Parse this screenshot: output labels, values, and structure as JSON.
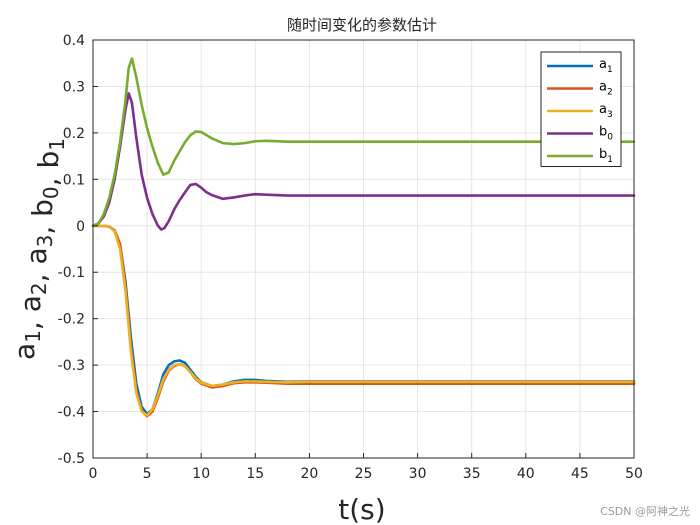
{
  "chart_data": {
    "type": "line",
    "title": "随时间变化的参数估计",
    "xlabel": "t(s)",
    "ylabel": {
      "parts": [
        {
          "base": "a",
          "sub": "1"
        },
        {
          "base": ", a",
          "sub": "2"
        },
        {
          "base": ", a",
          "sub": "3"
        },
        {
          "base": ", b",
          "sub": "0"
        },
        {
          "base": ", b",
          "sub": "1"
        }
      ]
    },
    "xlim": [
      0,
      50
    ],
    "ylim": [
      -0.5,
      0.4
    ],
    "xticks": [
      0,
      5,
      10,
      15,
      20,
      25,
      30,
      35,
      40,
      45,
      50
    ],
    "yticks": [
      0.4,
      0.3,
      0.2,
      0.1,
      0,
      -0.1,
      -0.2,
      -0.3,
      -0.4,
      -0.5
    ],
    "xtick_labels": [
      "0",
      "5",
      "10",
      "15",
      "20",
      "25",
      "30",
      "35",
      "40",
      "45",
      "50"
    ],
    "ytick_labels": [
      "0.4",
      "0.3",
      "0.2",
      "0.1",
      "0",
      "-0.1",
      "-0.2",
      "-0.3",
      "-0.4",
      "-0.5"
    ],
    "grid": true,
    "legend_position": "top-right",
    "series": [
      {
        "name": "a",
        "sub": "1",
        "color": "#0072BD",
        "x": [
          0,
          1,
          1.5,
          2,
          2.5,
          3,
          3.5,
          4,
          4.5,
          5,
          5.5,
          6,
          6.5,
          7,
          7.5,
          8,
          8.5,
          9,
          9.5,
          10,
          11,
          12,
          13,
          14,
          15,
          16,
          18,
          20,
          25,
          30,
          35,
          40,
          45,
          50
        ],
        "y": [
          0,
          0,
          -0.002,
          -0.01,
          -0.04,
          -0.12,
          -0.24,
          -0.34,
          -0.39,
          -0.405,
          -0.395,
          -0.36,
          -0.32,
          -0.3,
          -0.292,
          -0.29,
          -0.295,
          -0.31,
          -0.325,
          -0.337,
          -0.345,
          -0.342,
          -0.335,
          -0.332,
          -0.332,
          -0.334,
          -0.336,
          -0.335,
          -0.335,
          -0.335,
          -0.335,
          -0.335,
          -0.335,
          -0.335
        ]
      },
      {
        "name": "a",
        "sub": "2",
        "color": "#D95319",
        "x": [
          0,
          1,
          1.5,
          2,
          2.5,
          3,
          3.5,
          4,
          4.5,
          5,
          5.5,
          6,
          6.5,
          7,
          7.5,
          8,
          8.5,
          9,
          9.5,
          10,
          11,
          12,
          13,
          14,
          15,
          16,
          18,
          20,
          25,
          30,
          35,
          40,
          45,
          50
        ],
        "y": [
          0,
          0,
          -0.002,
          -0.01,
          -0.04,
          -0.13,
          -0.26,
          -0.355,
          -0.398,
          -0.41,
          -0.4,
          -0.37,
          -0.335,
          -0.312,
          -0.302,
          -0.298,
          -0.302,
          -0.315,
          -0.33,
          -0.34,
          -0.348,
          -0.345,
          -0.339,
          -0.337,
          -0.337,
          -0.338,
          -0.34,
          -0.34,
          -0.34,
          -0.34,
          -0.34,
          -0.34,
          -0.34,
          -0.34
        ]
      },
      {
        "name": "a",
        "sub": "3",
        "color": "#EDB120",
        "x": [
          0,
          1,
          1.5,
          2,
          2.5,
          3,
          3.5,
          4,
          4.5,
          5,
          5.5,
          6,
          6.5,
          7,
          7.5,
          8,
          8.5,
          9,
          9.5,
          10,
          11,
          12,
          13,
          14,
          15,
          16,
          18,
          20,
          25,
          30,
          35,
          40,
          45,
          50
        ],
        "y": [
          0,
          0,
          -0.002,
          -0.012,
          -0.05,
          -0.14,
          -0.27,
          -0.36,
          -0.4,
          -0.408,
          -0.395,
          -0.365,
          -0.33,
          -0.31,
          -0.3,
          -0.298,
          -0.302,
          -0.315,
          -0.328,
          -0.338,
          -0.345,
          -0.342,
          -0.337,
          -0.335,
          -0.335,
          -0.336,
          -0.337,
          -0.336,
          -0.336,
          -0.336,
          -0.336,
          -0.336,
          -0.336,
          -0.336
        ]
      },
      {
        "name": "b",
        "sub": "0",
        "color": "#7E2F8E",
        "x": [
          0,
          0.5,
          1,
          1.5,
          2,
          2.5,
          3,
          3.3,
          3.6,
          4,
          4.5,
          5,
          5.5,
          6,
          6.3,
          6.6,
          7,
          7.5,
          8,
          8.5,
          9,
          9.5,
          10,
          10.5,
          11,
          12,
          13,
          14,
          15,
          16,
          18,
          20,
          25,
          30,
          35,
          40,
          45,
          50
        ],
        "y": [
          0,
          0.005,
          0.02,
          0.05,
          0.1,
          0.17,
          0.25,
          0.285,
          0.265,
          0.19,
          0.11,
          0.06,
          0.025,
          0.0,
          -0.008,
          -0.005,
          0.01,
          0.035,
          0.055,
          0.072,
          0.088,
          0.09,
          0.082,
          0.072,
          0.066,
          0.058,
          0.061,
          0.065,
          0.068,
          0.067,
          0.065,
          0.065,
          0.065,
          0.065,
          0.065,
          0.065,
          0.065,
          0.065
        ]
      },
      {
        "name": "b",
        "sub": "1",
        "color": "#77AC30",
        "x": [
          0,
          0.5,
          1,
          1.5,
          2,
          2.5,
          3,
          3.3,
          3.6,
          4,
          4.5,
          5,
          5.5,
          6,
          6.5,
          7,
          7.5,
          8,
          8.5,
          9,
          9.5,
          10,
          10.5,
          11,
          12,
          13,
          14,
          15,
          16,
          18,
          20,
          25,
          30,
          35,
          40,
          45,
          50
        ],
        "y": [
          0,
          0.005,
          0.025,
          0.06,
          0.11,
          0.18,
          0.27,
          0.34,
          0.36,
          0.32,
          0.26,
          0.21,
          0.17,
          0.135,
          0.11,
          0.115,
          0.14,
          0.16,
          0.18,
          0.195,
          0.203,
          0.202,
          0.195,
          0.188,
          0.178,
          0.176,
          0.178,
          0.182,
          0.183,
          0.181,
          0.181,
          0.181,
          0.181,
          0.181,
          0.181,
          0.181,
          0.181
        ]
      }
    ]
  },
  "watermark": "CSDN @阿神之光"
}
